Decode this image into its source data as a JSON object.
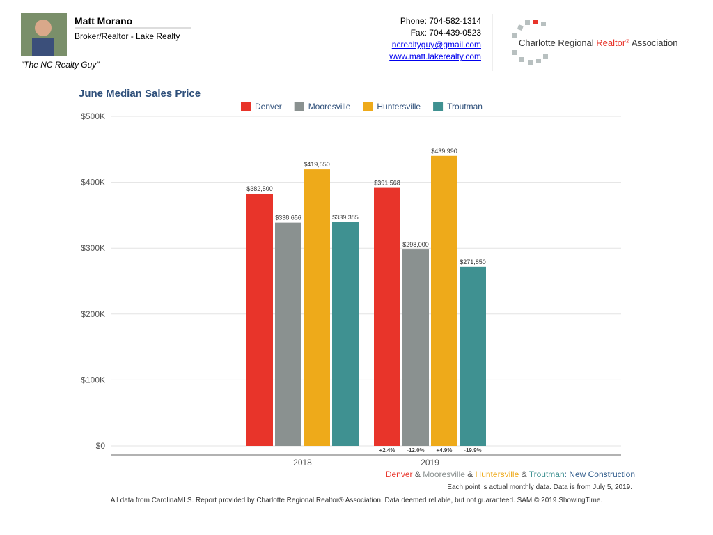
{
  "header": {
    "name": "Matt Morano",
    "role": "Broker/Realtor - Lake Realty",
    "tagline": "\"The NC Realty Guy\"",
    "phone": "Phone: 704-582-1314",
    "fax": "Fax: 704-439-0523",
    "email": "ncrealtyguy@gmail.com",
    "website": "www.matt.lakerealty.com",
    "logo_parts": [
      {
        "text": "Charlotte Regional ",
        "color": "#333333"
      },
      {
        "text": "Realtor",
        "color": "#e8342a"
      },
      {
        "text": "®",
        "color": "#e8342a"
      },
      {
        "text": " Association",
        "color": "#333333"
      }
    ]
  },
  "chart_data": {
    "type": "bar",
    "title": "June Median Sales Price",
    "categories": [
      "2018",
      "2019"
    ],
    "series": [
      {
        "name": "Denver",
        "color": "#e8342a",
        "values": [
          382500,
          391568
        ],
        "value_labels": [
          "$382,500",
          "$391,568"
        ]
      },
      {
        "name": "Mooresville",
        "color": "#8a9190",
        "values": [
          338656,
          298000
        ],
        "value_labels": [
          "$338,656",
          "$298,000"
        ]
      },
      {
        "name": "Huntersville",
        "color": "#eeaa1a",
        "values": [
          419550,
          439990
        ],
        "value_labels": [
          "$419,550",
          "$439,990"
        ]
      },
      {
        "name": "Troutman",
        "color": "#3f9191",
        "values": [
          339385,
          271850
        ],
        "value_labels": [
          "$339,385",
          "$271,850"
        ]
      }
    ],
    "change_labels": [
      "+2.4%",
      "-12.0%",
      "+4.9%",
      "-19.9%"
    ],
    "ylim": [
      0,
      500000
    ],
    "yticks": [
      {
        "value": 0,
        "label": "$0"
      },
      {
        "value": 100000,
        "label": "$100K"
      },
      {
        "value": 200000,
        "label": "$200K"
      },
      {
        "value": 300000,
        "label": "$300K"
      },
      {
        "value": 400000,
        "label": "$400K"
      },
      {
        "value": 500000,
        "label": "$500K"
      }
    ],
    "grid": true,
    "legend": "top",
    "subtitle_parts": [
      {
        "text": "Denver",
        "color": "#e8342a"
      },
      {
        "text": " & ",
        "color": "#555555"
      },
      {
        "text": "Mooresville",
        "color": "#8a9190"
      },
      {
        "text": " & ",
        "color": "#555555"
      },
      {
        "text": "Huntersville",
        "color": "#eeaa1a"
      },
      {
        "text": " & ",
        "color": "#555555"
      },
      {
        "text": "Troutman",
        "color": "#3f9191"
      },
      {
        "text": ": New Construction",
        "color": "#2e5a8a"
      }
    ],
    "note": "Each point is actual monthly data. Data is from July 5, 2019.",
    "footer": "All data from CarolinaMLS. Report provided by Charlotte Regional Realtor® Association. Data deemed reliable, but not guaranteed. SAM © 2019 ShowingTime."
  }
}
